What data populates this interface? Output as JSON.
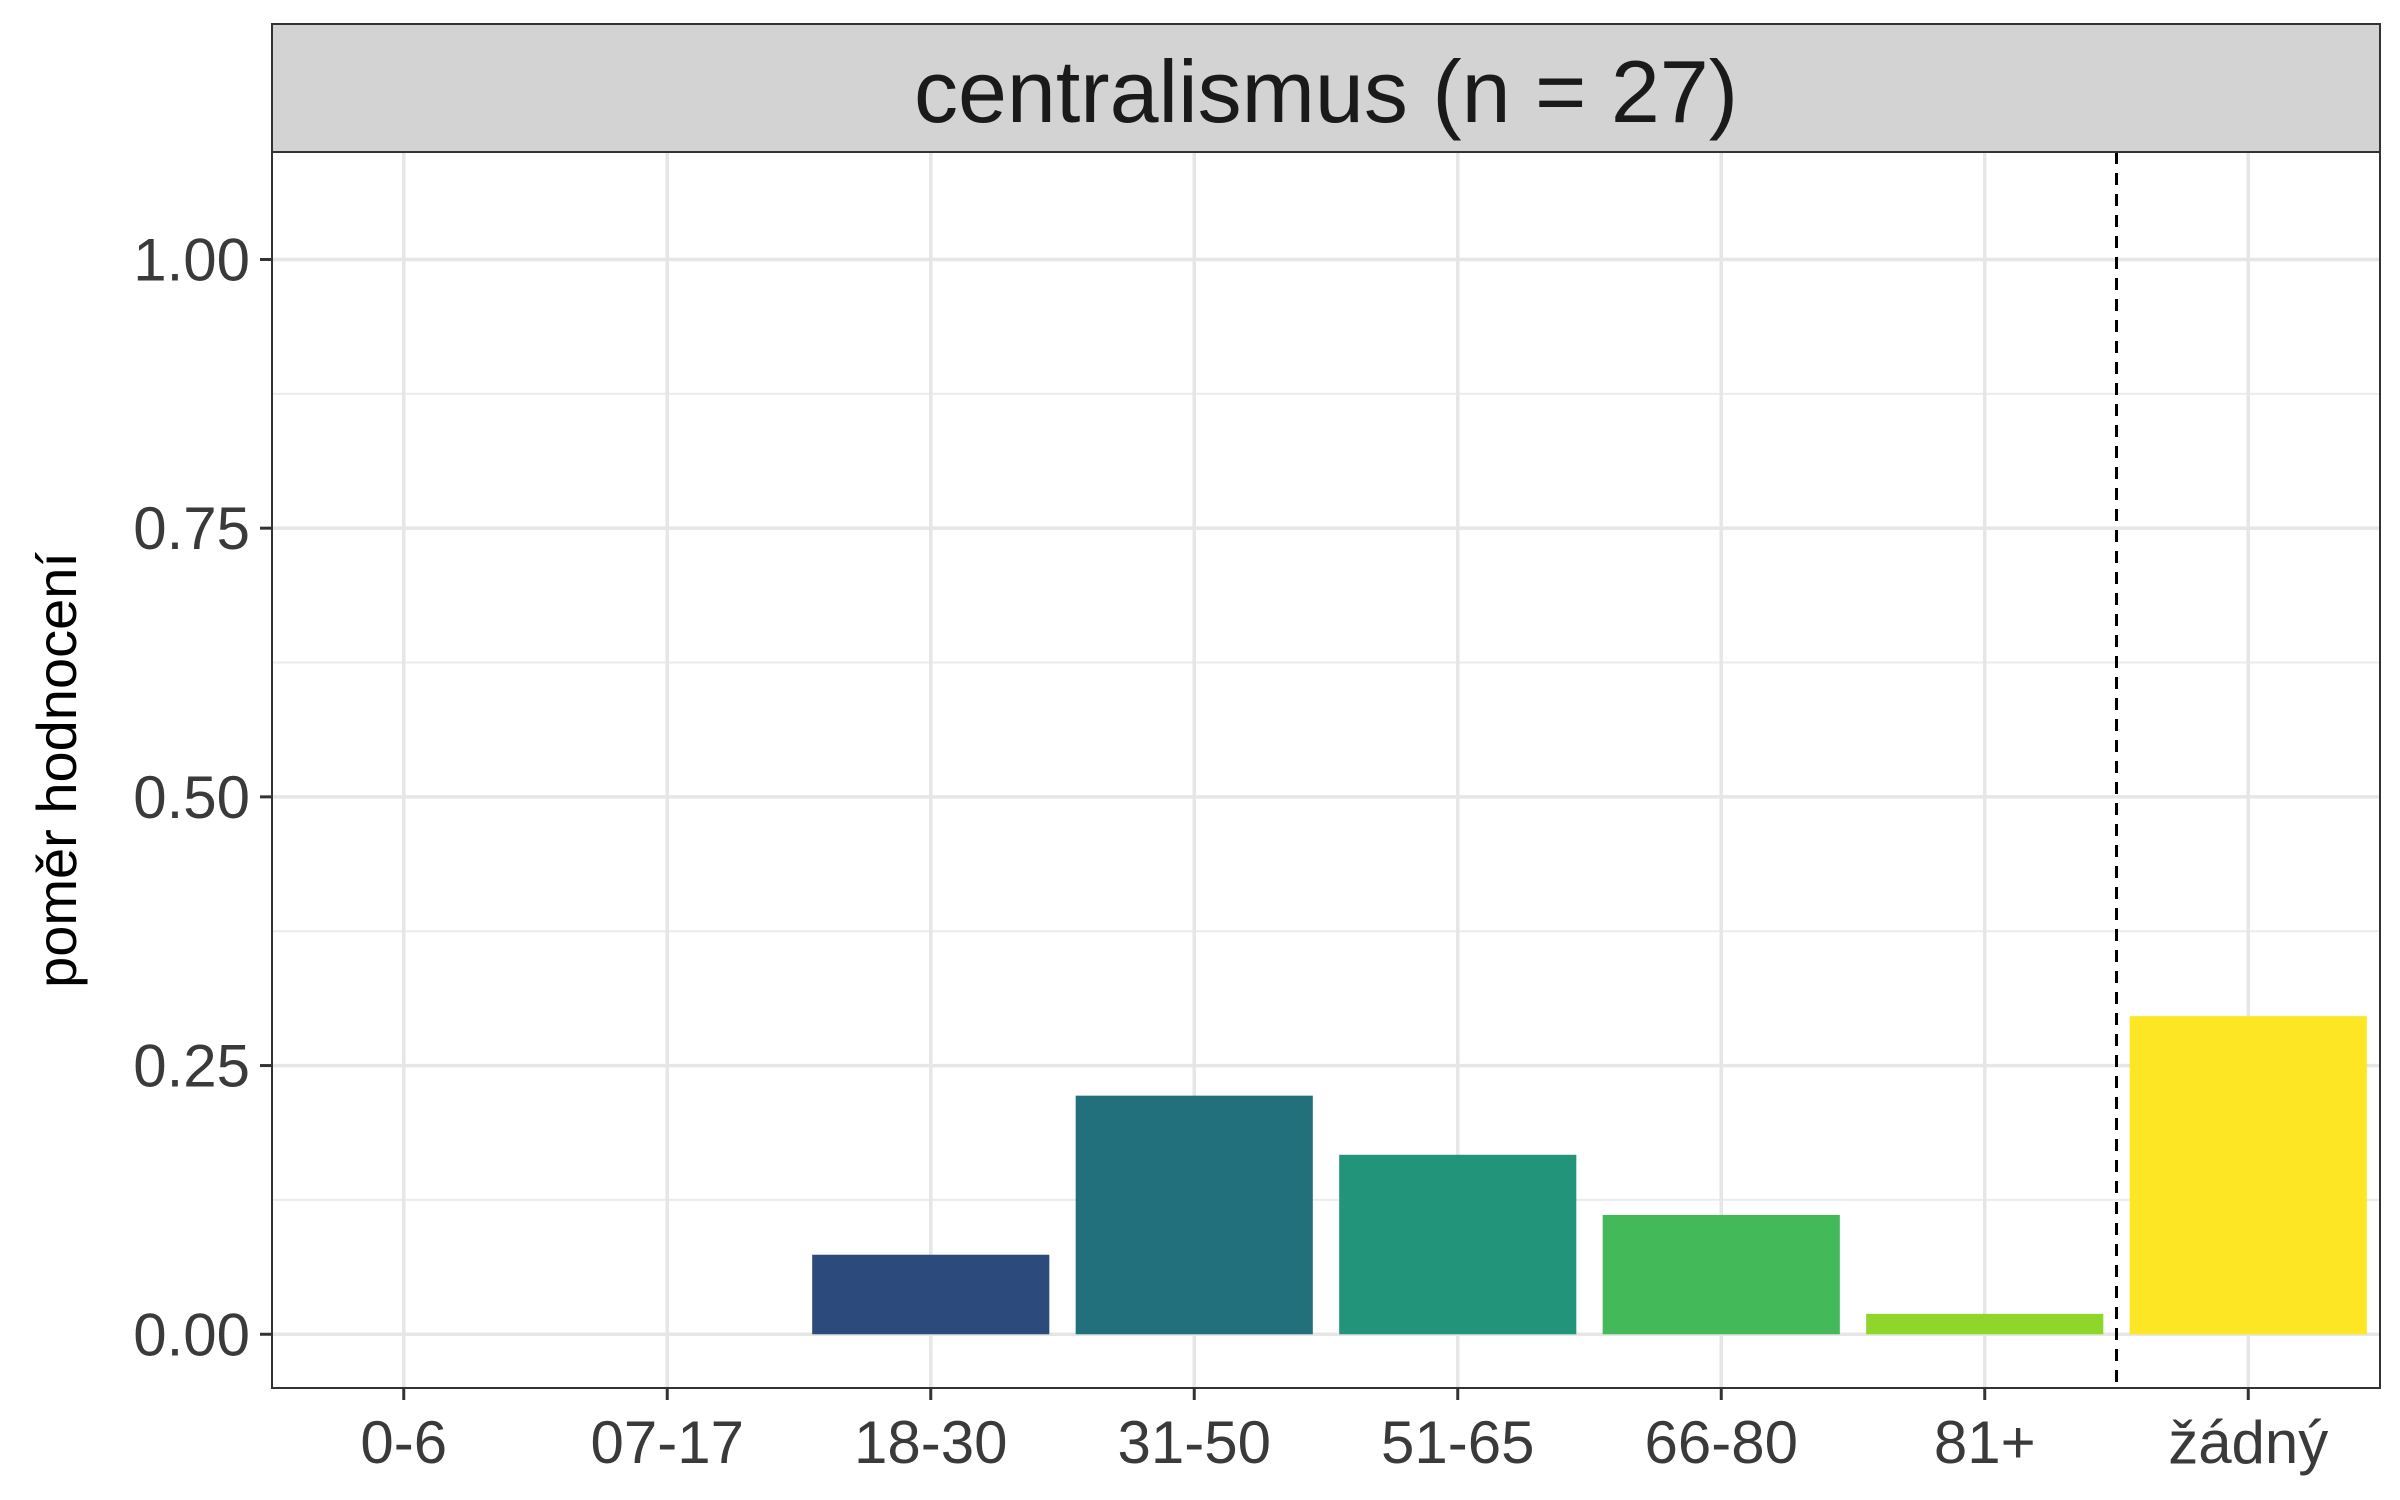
{
  "chart_data": {
    "type": "bar",
    "facet_title": "centralismus (n = 27)",
    "ylabel": "poměr hodnocení",
    "xlabel": "",
    "categories": [
      "0-6",
      "07-17",
      "18-30",
      "31-50",
      "51-65",
      "66-80",
      "81+",
      "žádný"
    ],
    "values": [
      0,
      0,
      0.074,
      0.222,
      0.167,
      0.111,
      0.019,
      0.296
    ],
    "colors": [
      "#440154",
      "#46337E",
      "#2C4A7C",
      "#21707C",
      "#22947A",
      "#43B95A",
      "#8ED62C",
      "#FDE725"
    ],
    "ylim": [
      -0.05,
      1.1
    ],
    "yticks": [
      0,
      0.25,
      0.5,
      0.75,
      1.0
    ],
    "ytick_labels": [
      "0.00",
      "0.25",
      "0.50",
      "0.75",
      "1.00"
    ],
    "reference_line": "dashed vertical separator between 81+ and žádný",
    "grid": true
  }
}
